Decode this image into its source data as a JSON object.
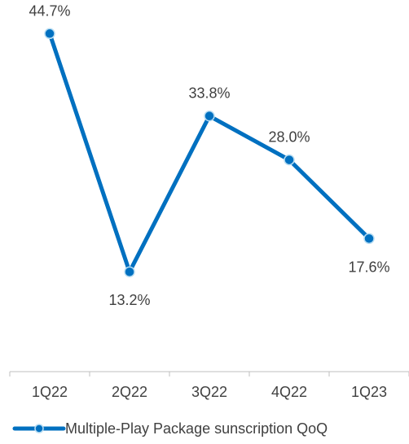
{
  "chart_data": {
    "type": "line",
    "categories": [
      "1Q22",
      "2Q22",
      "3Q22",
      "4Q22",
      "1Q23"
    ],
    "series": [
      {
        "name": "Multiple-Play Package sunscription QoQ",
        "values": [
          44.7,
          13.2,
          33.8,
          28.0,
          17.6
        ],
        "value_labels": [
          "44.7%",
          "13.2%",
          "33.8%",
          "28.0%",
          "17.6%"
        ],
        "label_positions": [
          "above",
          "below",
          "above",
          "above",
          "below"
        ],
        "color": "#0070C0"
      }
    ],
    "ylim": [
      0,
      50
    ],
    "grid": false,
    "legend_position": "bottom-left"
  },
  "colors": {
    "axis": "#bfbfbf",
    "text": "#404040",
    "marker_edge": "#b7dcf2"
  }
}
